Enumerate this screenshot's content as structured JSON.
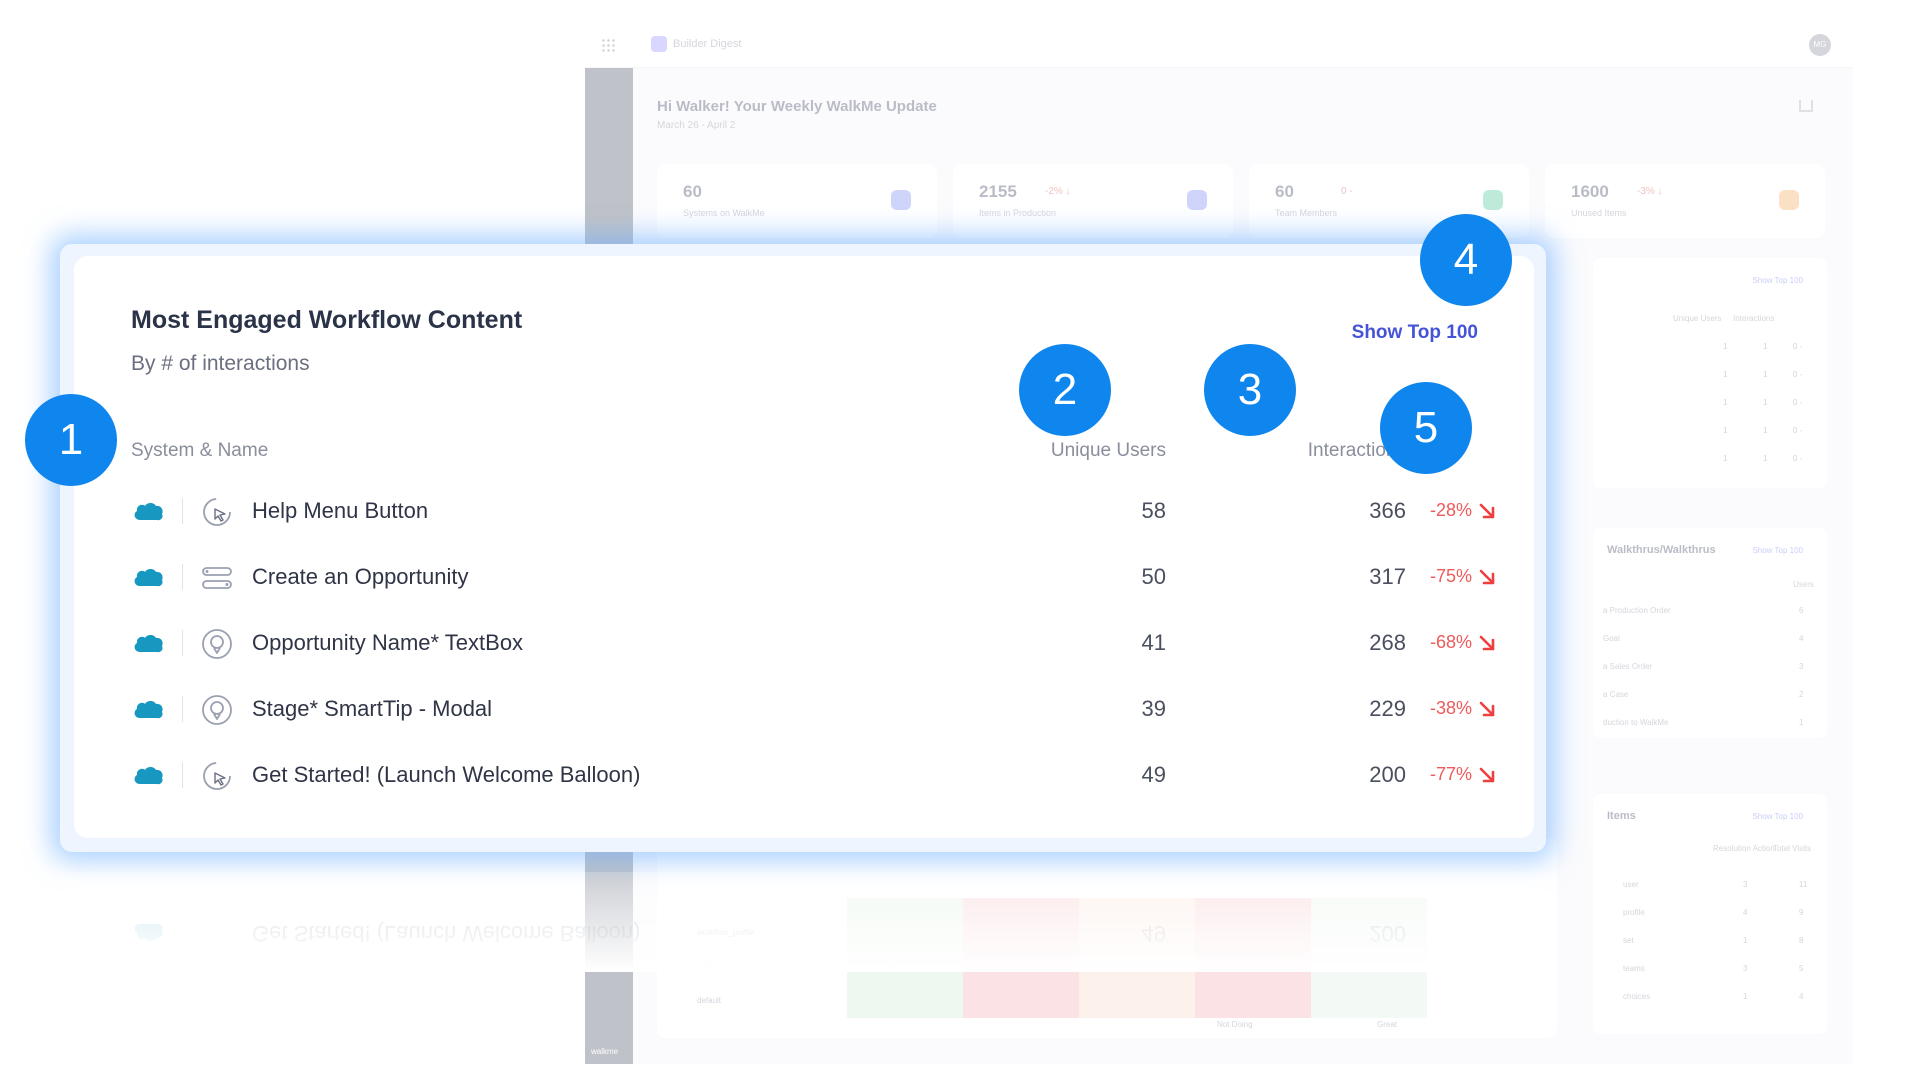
{
  "background": {
    "brand": "Builder Digest",
    "avatar": "MG",
    "title": "Hi Walker! Your Weekly WalkMe Update",
    "subtitle": "March 26 - April 2",
    "stats": [
      {
        "value": "60",
        "delta": "",
        "label": "Systems on WalkMe",
        "color": "#6b7cf0"
      },
      {
        "value": "2155",
        "delta": "-2% ↓",
        "label": "Items in Production",
        "color": "#6b7cf0"
      },
      {
        "value": "60",
        "delta": "0 -",
        "label": "Team Members",
        "color": "#37c48a"
      },
      {
        "value": "1600",
        "delta": "-3% ↓",
        "label": "Unused Items",
        "color": "#f4a34a"
      }
    ],
    "panel1": {
      "link": "Show Top 100",
      "cols": [
        "Unique Users",
        "Interactions"
      ],
      "rows": [
        [
          "1",
          "1",
          "0 -"
        ],
        [
          "1",
          "1",
          "0 -"
        ],
        [
          "1",
          "1",
          "0 -"
        ],
        [
          "1",
          "1",
          "0 -"
        ],
        [
          "1",
          "1",
          "0 -"
        ]
      ]
    },
    "panel2": {
      "title": "Walkthrus/Walkthrus",
      "link": "Show Top 100",
      "col": "Users",
      "rows": [
        [
          "a Production Order",
          "6"
        ],
        [
          "Goal",
          "4"
        ],
        [
          "a Sales Order",
          "3"
        ],
        [
          "a Case",
          "2"
        ],
        [
          "duction to WalkMe",
          "1"
        ]
      ]
    },
    "panel3": {
      "title": "Items",
      "link": "Show Top 100",
      "cols": [
        "Resolution Action",
        "Total Visits"
      ],
      "rows": [
        [
          "user",
          "3",
          "11"
        ],
        [
          "profile",
          "4",
          "9"
        ],
        [
          "set",
          "1",
          "8"
        ],
        [
          "teams",
          "3",
          "5"
        ],
        [
          "choices",
          "1",
          "4"
        ]
      ]
    },
    "heatmap_rows": [
      "workflow_profile",
      "platforms_app",
      "default"
    ],
    "legend": [
      "Not Doing",
      "Great"
    ],
    "sidebar_logo": "walkme"
  },
  "card": {
    "title": "Most Engaged Workflow Content",
    "subtitle": "By # of interactions",
    "show_top_label": "Show Top 100",
    "columns": {
      "name": "System & Name",
      "users": "Unique Users",
      "interactions": "Interactions"
    },
    "system_icon": "salesforce-cloud-icon",
    "brand_color": "#1798c1",
    "rows": [
      {
        "name": "Help Menu Button",
        "type_icon": "launcher-icon",
        "users": "58",
        "interactions": "366",
        "trend": "-28%"
      },
      {
        "name": "Create an Opportunity",
        "type_icon": "workflow-icon",
        "users": "50",
        "interactions": "317",
        "trend": "-75%"
      },
      {
        "name": "Opportunity Name* TextBox",
        "type_icon": "smarttip-icon",
        "users": "41",
        "interactions": "268",
        "trend": "-68%"
      },
      {
        "name": "Stage* SmartTip - Modal",
        "type_icon": "smarttip-icon",
        "users": "39",
        "interactions": "229",
        "trend": "-38%"
      },
      {
        "name": "Get Started! (Launch Welcome Balloon)",
        "type_icon": "launcher-icon",
        "users": "49",
        "interactions": "200",
        "trend": "-77%"
      }
    ]
  },
  "callouts": [
    "1",
    "2",
    "3",
    "4",
    "5"
  ]
}
